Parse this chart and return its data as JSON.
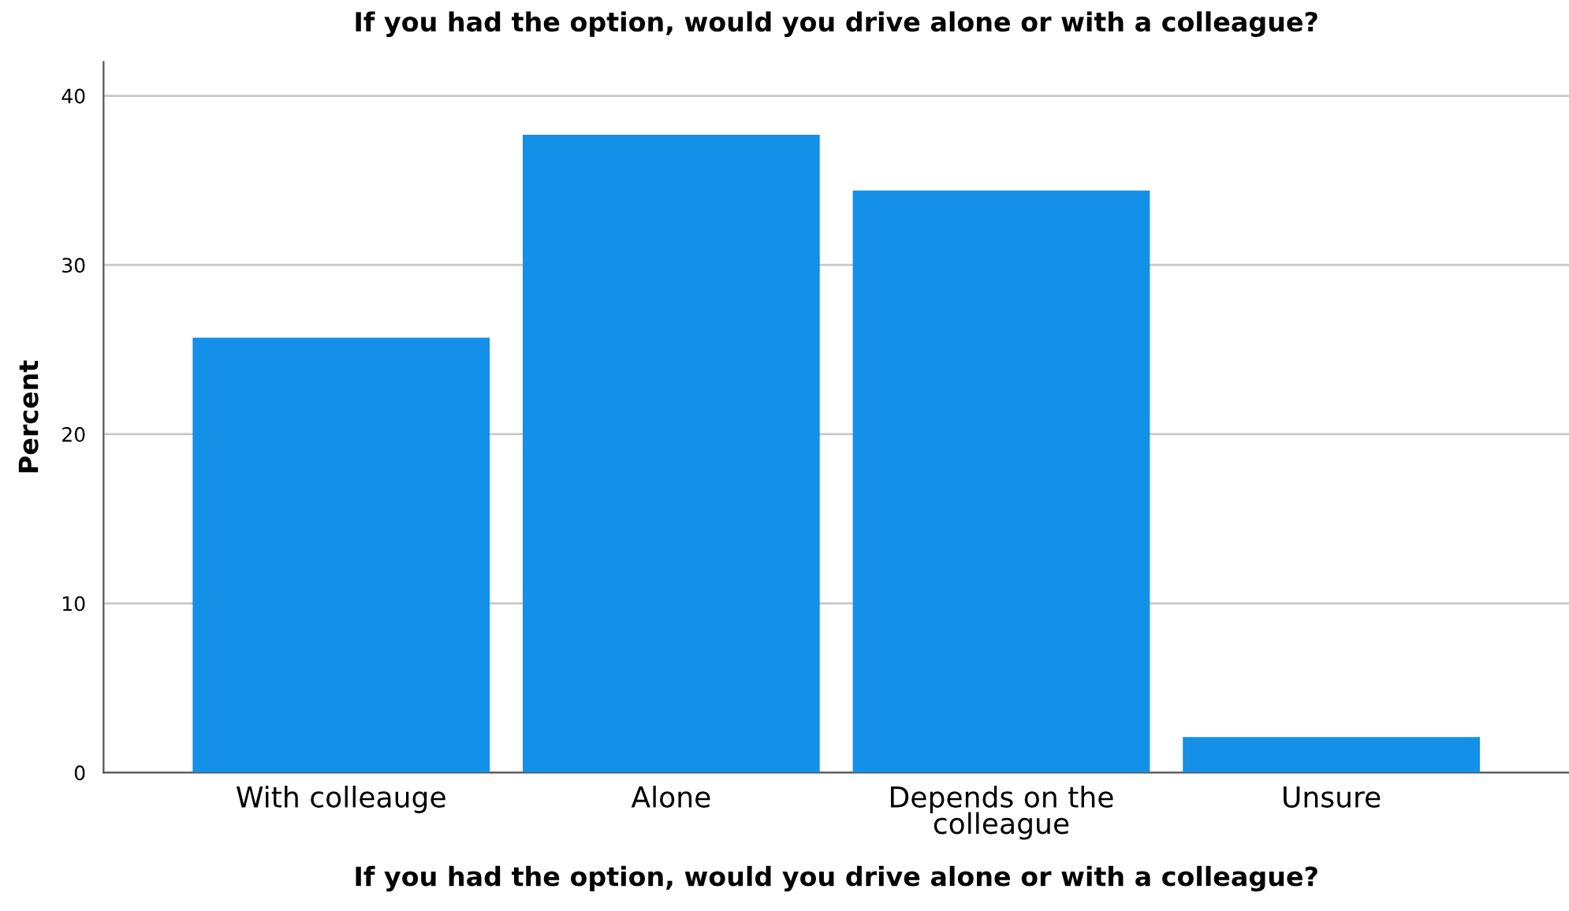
{
  "chart_data": {
    "type": "bar",
    "title": "If you had the option, would you drive alone or with a colleague?",
    "xlabel": "If you had the option, would you drive alone or with a colleague?",
    "ylabel": "Percent",
    "categories": [
      "With colleauge",
      "Alone",
      "Depends on the\ncolleague",
      "Unsure"
    ],
    "values": [
      25.7,
      37.7,
      34.4,
      2.1
    ],
    "color": "#1490e8",
    "ylim": [
      0,
      42
    ],
    "yticks": [
      0,
      10,
      20,
      30,
      40
    ],
    "grid": "y"
  }
}
